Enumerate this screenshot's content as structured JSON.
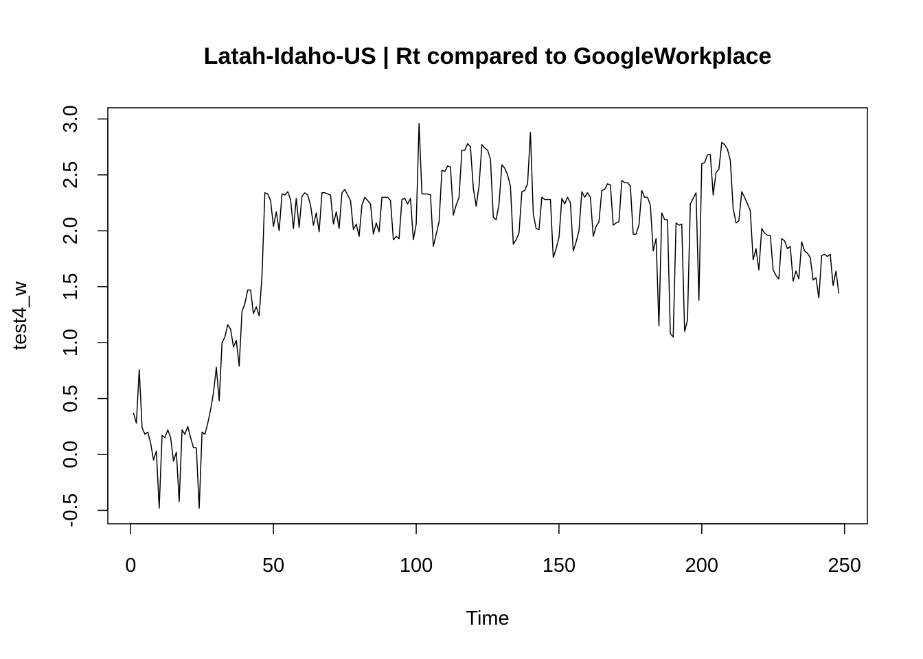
{
  "chart_data": {
    "type": "line",
    "title": "Latah-Idaho-US | Rt compared to GoogleWorkplace",
    "xlabel": "Time",
    "ylabel": "test4_w",
    "xlim": [
      -8,
      258
    ],
    "ylim": [
      -0.62,
      3.1
    ],
    "xticks": [
      0,
      50,
      100,
      150,
      200,
      250
    ],
    "xtick_labels": [
      "0",
      "50",
      "100",
      "150",
      "200",
      "250"
    ],
    "yticks": [
      -0.5,
      0.0,
      0.5,
      1.0,
      1.5,
      2.0,
      2.5,
      3.0
    ],
    "ytick_labels": [
      "-0.5",
      "0.0",
      "0.5",
      "1.0",
      "1.5",
      "2.0",
      "2.5",
      "3.0"
    ],
    "grid": false,
    "line_color": "#000000",
    "series": [
      {
        "x_start": 1,
        "values": [
          0.37,
          0.28,
          0.76,
          0.24,
          0.18,
          0.2,
          0.1,
          -0.05,
          0.03,
          -0.48,
          0.17,
          0.15,
          0.22,
          0.15,
          -0.06,
          0.02,
          -0.42,
          0.22,
          0.18,
          0.25,
          0.15,
          0.06,
          0.06,
          -0.48,
          0.2,
          0.18,
          0.28,
          0.4,
          0.55,
          0.78,
          0.48,
          1.0,
          1.05,
          1.16,
          1.12,
          0.96,
          1.02,
          0.79,
          1.28,
          1.35,
          1.47,
          1.47,
          1.26,
          1.32,
          1.24,
          1.6,
          2.34,
          2.33,
          2.27,
          2.04,
          2.17,
          2.0,
          2.33,
          2.32,
          2.35,
          2.28,
          2.02,
          2.29,
          2.03,
          2.31,
          2.34,
          2.32,
          2.23,
          2.05,
          2.16,
          1.99,
          2.34,
          2.34,
          2.33,
          2.32,
          2.06,
          2.17,
          2.02,
          2.34,
          2.37,
          2.32,
          2.27,
          2.01,
          2.06,
          1.95,
          2.23,
          2.3,
          2.27,
          2.24,
          1.97,
          2.07,
          1.99,
          2.3,
          2.3,
          2.3,
          2.27,
          1.92,
          1.95,
          1.93,
          2.28,
          2.29,
          2.24,
          2.29,
          1.92,
          2.06,
          2.96,
          2.33,
          2.33,
          2.33,
          2.32,
          1.86,
          1.97,
          2.08,
          2.54,
          2.53,
          2.58,
          2.57,
          2.14,
          2.23,
          2.3,
          2.72,
          2.72,
          2.78,
          2.75,
          2.38,
          2.22,
          2.4,
          2.77,
          2.74,
          2.72,
          2.64,
          2.12,
          2.1,
          2.24,
          2.59,
          2.56,
          2.5,
          2.4,
          1.88,
          1.92,
          1.98,
          2.35,
          2.36,
          2.42,
          2.88,
          2.15,
          2.02,
          2.01,
          2.3,
          2.28,
          2.28,
          2.28,
          1.76,
          1.84,
          1.94,
          2.29,
          2.24,
          2.3,
          2.25,
          1.82,
          1.9,
          2.0,
          2.35,
          2.3,
          2.34,
          2.3,
          1.95,
          2.04,
          2.08,
          2.36,
          2.37,
          2.42,
          2.41,
          2.05,
          2.07,
          2.08,
          2.45,
          2.43,
          2.43,
          2.4,
          1.97,
          1.97,
          2.05,
          2.36,
          2.3,
          2.3,
          2.23,
          1.82,
          1.93,
          1.15,
          2.16,
          2.1,
          2.1,
          1.08,
          1.05,
          2.07,
          2.05,
          2.06,
          1.1,
          1.2,
          2.24,
          2.29,
          2.34,
          1.38,
          2.6,
          2.61,
          2.68,
          2.68,
          2.32,
          2.52,
          2.55,
          2.79,
          2.77,
          2.73,
          2.63,
          2.2,
          2.07,
          2.09,
          2.35,
          2.3,
          2.24,
          2.18,
          1.74,
          1.84,
          1.65,
          2.02,
          1.98,
          1.96,
          1.96,
          1.65,
          1.6,
          1.57,
          1.93,
          1.91,
          1.84,
          1.86,
          1.55,
          1.64,
          1.57,
          1.9,
          1.82,
          1.8,
          1.76,
          1.56,
          1.58,
          1.4,
          1.78,
          1.79,
          1.77,
          1.79,
          1.51,
          1.64,
          1.44
        ]
      }
    ]
  }
}
